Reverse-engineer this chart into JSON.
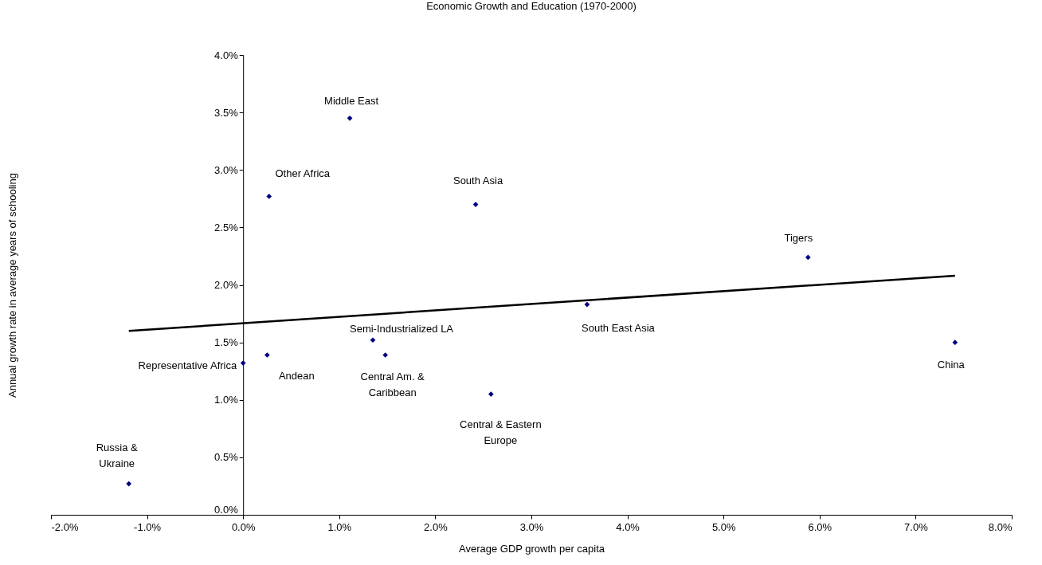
{
  "chart_data": {
    "type": "scatter",
    "title": "Economic Growth and Education (1970-2000)",
    "xlabel": "Average GDP growth per capita",
    "ylabel": "Annual growth rate in average years of schooling",
    "xlim": [
      -2,
      8
    ],
    "ylim": [
      0,
      4
    ],
    "xticks": [
      {
        "value": -2,
        "label": "-2.0%"
      },
      {
        "value": -1,
        "label": "-1.0%"
      },
      {
        "value": 0,
        "label": "0.0%"
      },
      {
        "value": 1,
        "label": "1.0%"
      },
      {
        "value": 2,
        "label": "2.0%"
      },
      {
        "value": 3,
        "label": "3.0%"
      },
      {
        "value": 4,
        "label": "4.0%"
      },
      {
        "value": 5,
        "label": "5.0%"
      },
      {
        "value": 6,
        "label": "6.0%"
      },
      {
        "value": 7,
        "label": "7.0%"
      },
      {
        "value": 8,
        "label": "8.0%"
      }
    ],
    "yticks": [
      {
        "value": 0,
        "label": "0.0%"
      },
      {
        "value": 0.5,
        "label": "0.5%"
      },
      {
        "value": 1,
        "label": "1.0%"
      },
      {
        "value": 1.5,
        "label": "1.5%"
      },
      {
        "value": 2,
        "label": "2.0%"
      },
      {
        "value": 2.5,
        "label": "2.5%"
      },
      {
        "value": 3,
        "label": "3.0%"
      },
      {
        "value": 3.5,
        "label": "3.5%"
      },
      {
        "value": 4,
        "label": "4.0%"
      }
    ],
    "grid": false,
    "marker": "diamond",
    "series": [
      {
        "color": "#000080",
        "x": [
          -1.19,
          0.0,
          0.25,
          0.27,
          1.11,
          1.35,
          1.48,
          2.42,
          2.58,
          3.58,
          5.88,
          7.41
        ],
        "values": [
          0.27,
          1.32,
          1.39,
          2.77,
          3.45,
          1.52,
          1.39,
          2.7,
          1.05,
          1.83,
          2.24,
          1.5
        ]
      },
      {
        "type": "line",
        "marker": "none",
        "color": "#000000",
        "x": [
          -1.19,
          7.41
        ],
        "values": [
          1.6,
          2.08
        ]
      }
    ],
    "annotations": [
      {
        "text": "Russia &\nUkraine",
        "x": -1.19,
        "y": 0.27
      },
      {
        "text": "Representative Africa",
        "x": 0.0,
        "y": 1.32
      },
      {
        "text": "Andean",
        "x": 0.25,
        "y": 1.39
      },
      {
        "text": "Other Africa",
        "x": 0.27,
        "y": 2.77
      },
      {
        "text": "Middle East",
        "x": 1.11,
        "y": 3.45
      },
      {
        "text": "Semi-Industrialized LA",
        "x": 1.35,
        "y": 1.52
      },
      {
        "text": "Central Am. &\nCaribbean",
        "x": 1.48,
        "y": 1.39
      },
      {
        "text": "South Asia",
        "x": 2.42,
        "y": 2.7
      },
      {
        "text": "Central & Eastern\nEurope",
        "x": 2.58,
        "y": 1.05
      },
      {
        "text": "South East Asia",
        "x": 3.58,
        "y": 1.83
      },
      {
        "text": "Tigers",
        "x": 5.88,
        "y": 2.24
      },
      {
        "text": "China",
        "x": 7.41,
        "y": 1.5
      }
    ]
  }
}
